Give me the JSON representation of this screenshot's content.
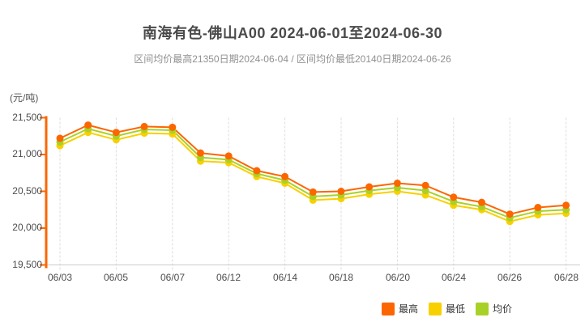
{
  "header": {
    "title": "南海有色-佛山A00 2024-06-01至2024-06-30",
    "subtitle": "区间均价最高21350日期2024-06-04 / 区间均价最低20140日期2024-06-26"
  },
  "chart_data": {
    "type": "line",
    "title": "南海有色-佛山A00 2024-06-01至2024-06-30",
    "unit_label": "(元/吨)",
    "ylabel": "元/吨",
    "ylim": [
      19500,
      21500
    ],
    "y_ticks": [
      21500,
      21000,
      20500,
      20000,
      19500
    ],
    "y_tick_labels": [
      "21,500",
      "21,000",
      "20,500",
      "20,000",
      "19,500"
    ],
    "dates": [
      "06/03",
      "06/04",
      "06/05",
      "06/06",
      "06/07",
      "06/11",
      "06/12",
      "06/13",
      "06/14",
      "06/17",
      "06/18",
      "06/19",
      "06/20",
      "06/21",
      "06/24",
      "06/25",
      "06/26",
      "06/27",
      "06/28"
    ],
    "x_tick_labels": [
      "06/03",
      "06/05",
      "06/07",
      "06/12",
      "06/14",
      "06/18",
      "06/20",
      "06/24",
      "06/26",
      "06/28"
    ],
    "x_tick_indices": [
      0,
      2,
      4,
      6,
      8,
      10,
      12,
      14,
      16,
      18
    ],
    "grid": "vertical-dashed",
    "legend_position": "bottom-right",
    "axis_colors": {
      "y_axis": "#fc6600",
      "x_axis": "#cccccc",
      "gridline": "#dddddd"
    },
    "series": [
      {
        "key": "high",
        "name": "最高",
        "color": "#fc6600",
        "values": [
          21220,
          21400,
          21300,
          21380,
          21370,
          21020,
          20980,
          20780,
          20700,
          20490,
          20500,
          20560,
          20610,
          20580,
          20420,
          20350,
          20190,
          20280,
          20310
        ]
      },
      {
        "key": "low",
        "name": "最低",
        "color": "#f8d000",
        "values": [
          21120,
          21300,
          21200,
          21290,
          21280,
          20910,
          20890,
          20700,
          20610,
          20380,
          20400,
          20460,
          20500,
          20450,
          20310,
          20250,
          20090,
          20180,
          20200
        ]
      },
      {
        "key": "avg",
        "name": "均价",
        "color": "#a8d128",
        "values": [
          21170,
          21350,
          21250,
          21340,
          21330,
          20960,
          20930,
          20740,
          20650,
          20430,
          20450,
          20510,
          20550,
          20510,
          20360,
          20290,
          20140,
          20230,
          20250
        ]
      }
    ],
    "annotations": {
      "max_avg_value": 21350,
      "max_avg_date": "2024-06-04",
      "min_avg_value": 20140,
      "min_avg_date": "2024-06-26"
    }
  }
}
